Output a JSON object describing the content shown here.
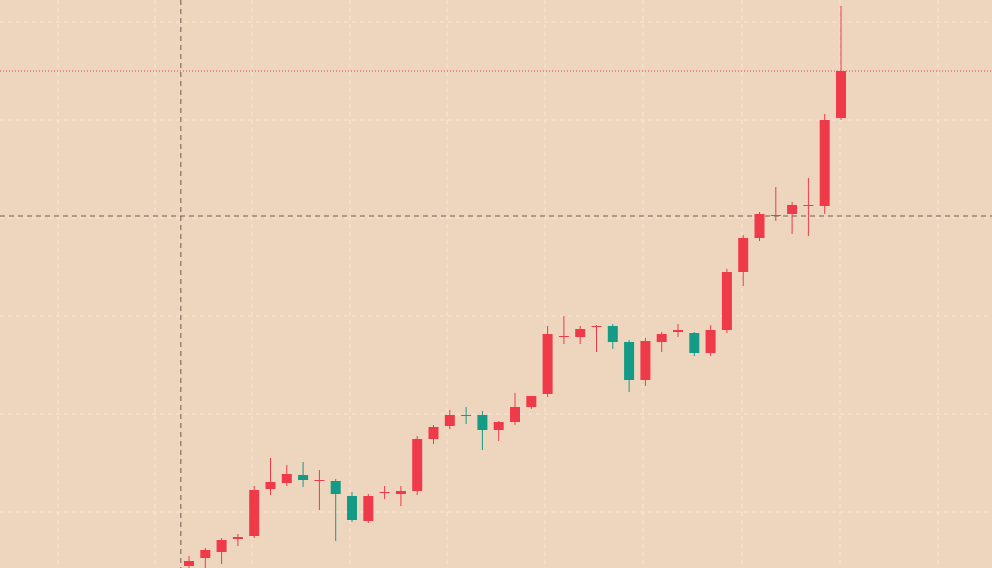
{
  "chart_data": {
    "type": "candlestick",
    "title": "",
    "xlabel": "",
    "ylabel": "",
    "ylim": [
      0,
      568
    ],
    "grid": true,
    "colors": {
      "background": "#EED5BE",
      "grid": "#F5E6D8",
      "up": "#EF3A4A",
      "down": "#139B86",
      "crosshair": "#6E5C50",
      "price_line": "#EF3A4A"
    },
    "price_line_value": 495,
    "crosshair": {
      "x_index": -0.5,
      "y_value": 350
    },
    "candles": [
      {
        "open": 0,
        "high": 10,
        "low": -20,
        "close": 5
      },
      {
        "open": 8,
        "high": 18,
        "low": -8,
        "close": 16
      },
      {
        "open": 14,
        "high": 28,
        "low": 2,
        "close": 26
      },
      {
        "open": 27,
        "high": 32,
        "low": 20,
        "close": 29
      },
      {
        "open": 30,
        "high": 80,
        "low": 28,
        "close": 76
      },
      {
        "open": 77,
        "high": 108,
        "low": 71,
        "close": 84
      },
      {
        "open": 83,
        "high": 101,
        "low": 80,
        "close": 92
      },
      {
        "open": 91,
        "high": 104,
        "low": 79,
        "close": 86
      },
      {
        "open": 86,
        "high": 96,
        "low": 56,
        "close": 86
      },
      {
        "open": 85,
        "high": 87,
        "low": 25,
        "close": 72
      },
      {
        "open": 70,
        "high": 74,
        "low": 44,
        "close": 46
      },
      {
        "open": 45,
        "high": 72,
        "low": 43,
        "close": 70
      },
      {
        "open": 73,
        "high": 80,
        "low": 67,
        "close": 74
      },
      {
        "open": 72,
        "high": 80,
        "low": 60,
        "close": 75
      },
      {
        "open": 75,
        "high": 130,
        "low": 71,
        "close": 127
      },
      {
        "open": 127,
        "high": 141,
        "low": 122,
        "close": 139
      },
      {
        "open": 140,
        "high": 156,
        "low": 137,
        "close": 151
      },
      {
        "open": 151,
        "high": 159,
        "low": 142,
        "close": 150
      },
      {
        "open": 151,
        "high": 155,
        "low": 116,
        "close": 136
      },
      {
        "open": 136,
        "high": 145,
        "low": 125,
        "close": 144
      },
      {
        "open": 144,
        "high": 173,
        "low": 141,
        "close": 159
      },
      {
        "open": 159,
        "high": 170,
        "low": 157,
        "close": 170
      },
      {
        "open": 172,
        "high": 240,
        "low": 169,
        "close": 232
      },
      {
        "open": 230,
        "high": 250,
        "low": 222,
        "close": 230
      },
      {
        "open": 229,
        "high": 240,
        "low": 222,
        "close": 237
      },
      {
        "open": 240,
        "high": 241,
        "low": 214,
        "close": 240
      },
      {
        "open": 240,
        "high": 242,
        "low": 217,
        "close": 224
      },
      {
        "open": 224,
        "high": 226,
        "low": 174,
        "close": 186
      },
      {
        "open": 186,
        "high": 228,
        "low": 180,
        "close": 225
      },
      {
        "open": 224,
        "high": 234,
        "low": 214,
        "close": 232
      },
      {
        "open": 234,
        "high": 242,
        "low": 229,
        "close": 236
      },
      {
        "open": 233,
        "high": 234,
        "low": 210,
        "close": 213
      },
      {
        "open": 213,
        "high": 241,
        "low": 210,
        "close": 236
      },
      {
        "open": 236,
        "high": 297,
        "low": 233,
        "close": 294
      },
      {
        "open": 294,
        "high": 331,
        "low": 280,
        "close": 328
      },
      {
        "open": 328,
        "high": 354,
        "low": 325,
        "close": 352
      },
      {
        "open": 351,
        "high": 379,
        "low": 345,
        "close": 351
      },
      {
        "open": 352,
        "high": 364,
        "low": 332,
        "close": 361
      },
      {
        "open": 361,
        "high": 388,
        "low": 330,
        "close": 361
      },
      {
        "open": 360,
        "high": 452,
        "low": 352,
        "close": 446
      },
      {
        "open": 448,
        "high": 560,
        "low": 446,
        "close": 495
      }
    ]
  }
}
